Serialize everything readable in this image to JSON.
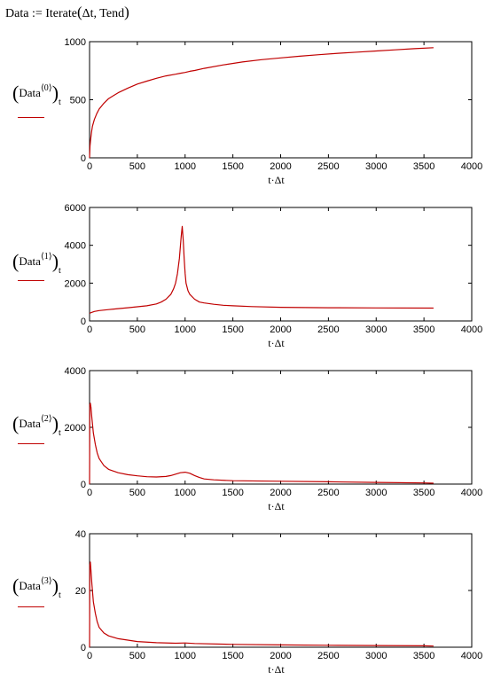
{
  "header": {
    "lhs": "Data",
    "assign": ":=",
    "func": "Iterate",
    "open_paren": "(",
    "args": "Δt, Tend",
    "close_paren": ")"
  },
  "plots": [
    {
      "ylabel": {
        "open": "(",
        "base": "Data",
        "sup": "⟨0⟩",
        "close": ")",
        "sub": "t"
      }
    },
    {
      "ylabel": {
        "open": "(",
        "base": "Data",
        "sup": "⟨1⟩",
        "close": ")",
        "sub": "t"
      }
    },
    {
      "ylabel": {
        "open": "(",
        "base": "Data",
        "sup": "⟨2⟩",
        "close": ")",
        "sub": "t"
      }
    },
    {
      "ylabel": {
        "open": "(",
        "base": "Data",
        "sup": "⟨3⟩",
        "close": ")",
        "sub": "t"
      }
    }
  ],
  "chart_data": [
    {
      "type": "line",
      "xlabel": "t·Δt",
      "ylabel": "(Data⟨0⟩)t",
      "xlim": [
        0,
        4000
      ],
      "ylim": [
        0,
        1000
      ],
      "xticks": [
        "0",
        "500",
        "1000",
        "1500",
        "2000",
        "2500",
        "3000",
        "3500",
        "4000"
      ],
      "yticks": [
        "0",
        "500",
        "1000"
      ],
      "color": "#c00000",
      "series": [
        {
          "x": [
            0,
            5,
            10,
            20,
            30,
            50,
            75,
            100,
            150,
            200,
            300,
            400,
            500,
            600,
            700,
            800,
            900,
            950,
            1000,
            1050,
            1100,
            1200,
            1400,
            1600,
            1800,
            2000,
            2200,
            2400,
            2600,
            2800,
            3000,
            3200,
            3400,
            3600
          ],
          "y": [
            0,
            100,
            150,
            220,
            270,
            330,
            380,
            420,
            470,
            510,
            560,
            600,
            635,
            660,
            685,
            705,
            720,
            728,
            735,
            745,
            752,
            770,
            800,
            825,
            845,
            860,
            875,
            888,
            900,
            910,
            920,
            930,
            940,
            948
          ]
        }
      ]
    },
    {
      "type": "line",
      "xlabel": "t·Δt",
      "ylabel": "(Data⟨1⟩)t",
      "xlim": [
        0,
        4000
      ],
      "ylim": [
        0,
        6000
      ],
      "xticks": [
        "0",
        "500",
        "1000",
        "1500",
        "2000",
        "2500",
        "3000",
        "3500",
        "4000"
      ],
      "yticks": [
        "0",
        "2000",
        "4000",
        "6000"
      ],
      "color": "#c00000",
      "series": [
        {
          "x": [
            0,
            20,
            50,
            100,
            200,
            300,
            400,
            500,
            600,
            700,
            750,
            800,
            850,
            880,
            900,
            920,
            940,
            960,
            970,
            980,
            990,
            1000,
            1010,
            1030,
            1050,
            1100,
            1150,
            1200,
            1300,
            1400,
            1500,
            1700,
            2000,
            2500,
            3000,
            3600
          ],
          "y": [
            400,
            450,
            500,
            550,
            600,
            650,
            700,
            750,
            800,
            900,
            1000,
            1150,
            1400,
            1700,
            2000,
            2500,
            3300,
            4500,
            5000,
            4300,
            3300,
            2500,
            2000,
            1600,
            1400,
            1150,
            1000,
            950,
            880,
            830,
            800,
            760,
            720,
            700,
            690,
            680
          ]
        }
      ]
    },
    {
      "type": "line",
      "xlabel": "t·Δt",
      "ylabel": "(Data⟨2⟩)t",
      "xlim": [
        0,
        4000
      ],
      "ylim": [
        0,
        4000
      ],
      "xticks": [
        "0",
        "500",
        "1000",
        "1500",
        "2000",
        "2500",
        "3000",
        "3500",
        "4000"
      ],
      "yticks": [
        "0",
        "2000",
        "4000"
      ],
      "color": "#c00000",
      "series": [
        {
          "x": [
            0,
            3,
            8,
            15,
            25,
            40,
            60,
            80,
            100,
            150,
            200,
            300,
            400,
            500,
            600,
            700,
            800,
            850,
            900,
            950,
            1000,
            1050,
            1100,
            1150,
            1200,
            1300,
            1500,
            2000,
            2500,
            3000,
            3500,
            3600
          ],
          "y": [
            0,
            2800,
            2850,
            2700,
            2300,
            1800,
            1400,
            1100,
            900,
            650,
            520,
            400,
            330,
            290,
            260,
            250,
            270,
            300,
            350,
            400,
            420,
            380,
            300,
            230,
            180,
            150,
            120,
            100,
            80,
            60,
            40,
            30
          ]
        }
      ]
    },
    {
      "type": "line",
      "xlabel": "t·Δt",
      "ylabel": "(Data⟨3⟩)t",
      "xlim": [
        0,
        4000
      ],
      "ylim": [
        0,
        40
      ],
      "xticks": [
        "0",
        "500",
        "1000",
        "1500",
        "2000",
        "2500",
        "3000",
        "3500",
        "4000"
      ],
      "yticks": [
        "0",
        "20",
        "40"
      ],
      "color": "#c00000",
      "series": [
        {
          "x": [
            0,
            3,
            8,
            15,
            25,
            40,
            60,
            80,
            100,
            150,
            200,
            300,
            400,
            500,
            700,
            900,
            1000,
            1100,
            1500,
            2000,
            2500,
            3000,
            3500,
            3600
          ],
          "y": [
            0,
            29,
            30,
            27,
            22,
            16,
            12,
            9,
            7,
            5,
            4,
            3,
            2.5,
            2,
            1.6,
            1.4,
            1.5,
            1.3,
            1,
            0.8,
            0.7,
            0.6,
            0.5,
            0.4
          ]
        }
      ]
    }
  ]
}
